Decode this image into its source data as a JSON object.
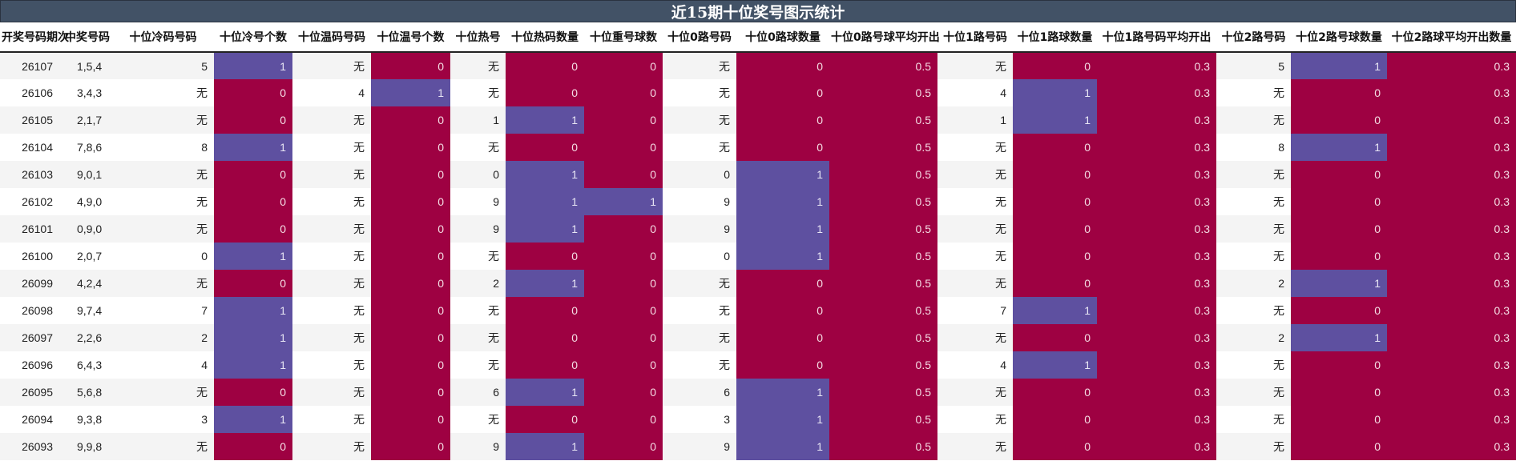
{
  "title": "近15期十位奖号图示统计",
  "colors": {
    "title_bg": "#425266",
    "highlight_one": "#5e50a0",
    "highlight_zero": "#9e0142",
    "row_alt": "#f4f4f4"
  },
  "columns": [
    "开奖号码期次",
    "中奖号码",
    "十位冷码号码",
    "十位冷号个数",
    "十位温码号码",
    "十位温号个数",
    "十位热号",
    "十位热码数量",
    "十位重号球数",
    "十位0路号码",
    "十位0路球数量",
    "十位0路号球平均开出",
    "十位1路号码",
    "十位1路球数量",
    "十位1路号码平均开出",
    "十位2路号码",
    "十位2路号球数量",
    "十位2路球平均开出数量"
  ],
  "rows": [
    [
      "26107",
      "1,5,4",
      "5",
      "1",
      "无",
      "0",
      "无",
      "0",
      "0",
      "无",
      "0",
      "0.5",
      "无",
      "0",
      "0.3",
      "5",
      "1",
      "0.3"
    ],
    [
      "26106",
      "3,4,3",
      "无",
      "0",
      "4",
      "1",
      "无",
      "0",
      "0",
      "无",
      "0",
      "0.5",
      "4",
      "1",
      "0.3",
      "无",
      "0",
      "0.3"
    ],
    [
      "26105",
      "2,1,7",
      "无",
      "0",
      "无",
      "0",
      "1",
      "1",
      "0",
      "无",
      "0",
      "0.5",
      "1",
      "1",
      "0.3",
      "无",
      "0",
      "0.3"
    ],
    [
      "26104",
      "7,8,6",
      "8",
      "1",
      "无",
      "0",
      "无",
      "0",
      "0",
      "无",
      "0",
      "0.5",
      "无",
      "0",
      "0.3",
      "8",
      "1",
      "0.3"
    ],
    [
      "26103",
      "9,0,1",
      "无",
      "0",
      "无",
      "0",
      "0",
      "1",
      "0",
      "0",
      "1",
      "0.5",
      "无",
      "0",
      "0.3",
      "无",
      "0",
      "0.3"
    ],
    [
      "26102",
      "4,9,0",
      "无",
      "0",
      "无",
      "0",
      "9",
      "1",
      "1",
      "9",
      "1",
      "0.5",
      "无",
      "0",
      "0.3",
      "无",
      "0",
      "0.3"
    ],
    [
      "26101",
      "0,9,0",
      "无",
      "0",
      "无",
      "0",
      "9",
      "1",
      "0",
      "9",
      "1",
      "0.5",
      "无",
      "0",
      "0.3",
      "无",
      "0",
      "0.3"
    ],
    [
      "26100",
      "2,0,7",
      "0",
      "1",
      "无",
      "0",
      "无",
      "0",
      "0",
      "0",
      "1",
      "0.5",
      "无",
      "0",
      "0.3",
      "无",
      "0",
      "0.3"
    ],
    [
      "26099",
      "4,2,4",
      "无",
      "0",
      "无",
      "0",
      "2",
      "1",
      "0",
      "无",
      "0",
      "0.5",
      "无",
      "0",
      "0.3",
      "2",
      "1",
      "0.3"
    ],
    [
      "26098",
      "9,7,4",
      "7",
      "1",
      "无",
      "0",
      "无",
      "0",
      "0",
      "无",
      "0",
      "0.5",
      "7",
      "1",
      "0.3",
      "无",
      "0",
      "0.3"
    ],
    [
      "26097",
      "2,2,6",
      "2",
      "1",
      "无",
      "0",
      "无",
      "0",
      "0",
      "无",
      "0",
      "0.5",
      "无",
      "0",
      "0.3",
      "2",
      "1",
      "0.3"
    ],
    [
      "26096",
      "6,4,3",
      "4",
      "1",
      "无",
      "0",
      "无",
      "0",
      "0",
      "无",
      "0",
      "0.5",
      "4",
      "1",
      "0.3",
      "无",
      "0",
      "0.3"
    ],
    [
      "26095",
      "5,6,8",
      "无",
      "0",
      "无",
      "0",
      "6",
      "1",
      "0",
      "6",
      "1",
      "0.5",
      "无",
      "0",
      "0.3",
      "无",
      "0",
      "0.3"
    ],
    [
      "26094",
      "9,3,8",
      "3",
      "1",
      "无",
      "0",
      "无",
      "0",
      "0",
      "3",
      "1",
      "0.5",
      "无",
      "0",
      "0.3",
      "无",
      "0",
      "0.3"
    ],
    [
      "26093",
      "9,9,8",
      "无",
      "0",
      "无",
      "0",
      "9",
      "1",
      "0",
      "9",
      "1",
      "0.5",
      "无",
      "0",
      "0.3",
      "无",
      "0",
      "0.3"
    ]
  ]
}
